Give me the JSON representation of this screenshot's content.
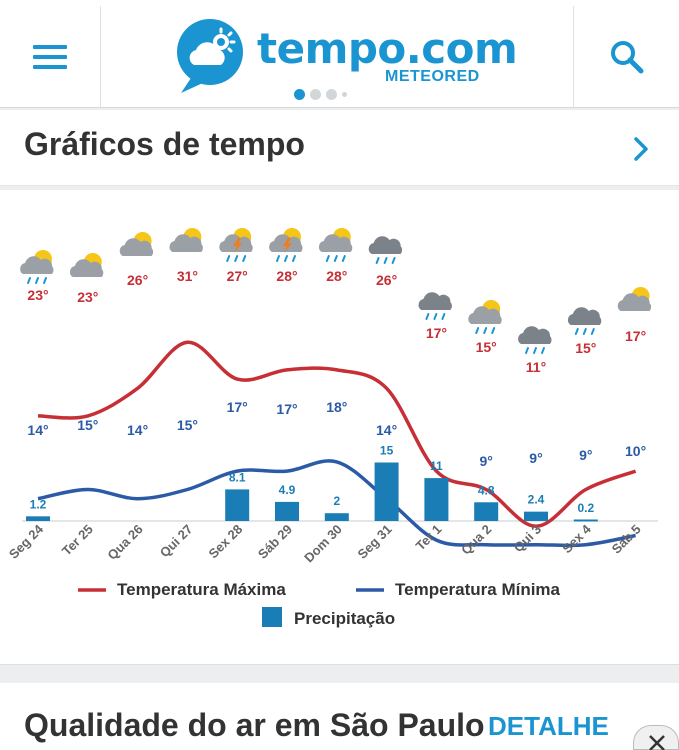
{
  "header": {
    "logo_name": "tempo.com",
    "logo_sub": "METEORED"
  },
  "section": {
    "title": "Gráficos de tempo"
  },
  "chart_data": {
    "type": "line",
    "categories": [
      "Seg 24",
      "Ter 25",
      "Qua 26",
      "Qui 27",
      "Sex 28",
      "Sáb 29",
      "Dom 30",
      "Seg 31",
      "Ter 1",
      "Qua 2",
      "Qui 3",
      "Sex 4",
      "Sáb 5"
    ],
    "max_temps": [
      23,
      23,
      26,
      31,
      27,
      28,
      28,
      26,
      17,
      15,
      11,
      15,
      17
    ],
    "min_temps": [
      14,
      15,
      14,
      15,
      17,
      17,
      18,
      14,
      null,
      9,
      9,
      9,
      10
    ],
    "precip": [
      1.2,
      null,
      null,
      null,
      8.1,
      4.9,
      2,
      15,
      11,
      4.8,
      2.4,
      0.2,
      null
    ],
    "icons": [
      "sun-cloud-rain-icon",
      "sun-cloud-icon",
      "sun-cloud-icon",
      "sun-cloud-icon",
      "sun-cloud-storm-icon",
      "sun-cloud-storm-icon",
      "sun-cloud-rain-icon",
      "cloud-rain-icon",
      "cloud-rain-icon",
      "sun-cloud-rain-icon",
      "cloud-rain-icon",
      "cloud-rain-icon",
      "sun-cloud-icon"
    ],
    "series": [
      {
        "name": "Temperatura Máxima",
        "color": "#c62f35"
      },
      {
        "name": "Temperatura Mínima",
        "color": "#2b5aa6"
      },
      {
        "name": "Precipitação",
        "color": "#1a7db6"
      }
    ],
    "legend_position": "bottom"
  },
  "air_quality": {
    "title": "Qualidade do ar em São Paulo",
    "detail_label": "DETALHE"
  }
}
